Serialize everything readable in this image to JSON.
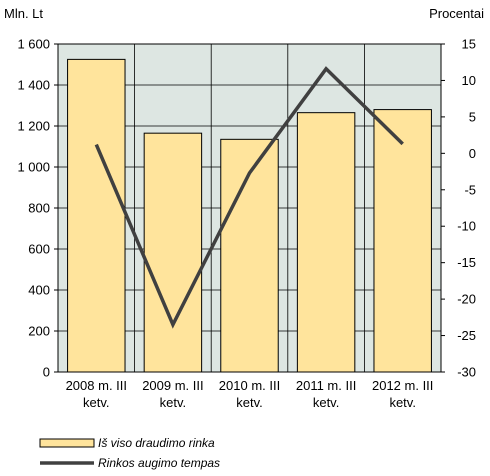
{
  "chart_data": {
    "type": "bar+line",
    "categories": [
      "2008 m. III ketv.",
      "2009 m. III ketv.",
      "2010 m. III ketv.",
      "2011 m. III ketv.",
      "2012 m. III ketv."
    ],
    "category_lines": [
      [
        "2008 m. III",
        "ketv."
      ],
      [
        "2009 m. III",
        "ketv."
      ],
      [
        "2010 m. III",
        "ketv."
      ],
      [
        "2011 m. III",
        "ketv."
      ],
      [
        "2012 m. III",
        "ketv."
      ]
    ],
    "ylabel_left": "Mln. Lt",
    "ylabel_right": "Procentai",
    "ylim_left": [
      0,
      1600
    ],
    "ylim_right": [
      -30,
      15
    ],
    "yticks_left": [
      {
        "value": 0,
        "label": "0"
      },
      {
        "value": 200,
        "label": "200"
      },
      {
        "value": 400,
        "label": "400"
      },
      {
        "value": 600,
        "label": "600"
      },
      {
        "value": 800,
        "label": "800"
      },
      {
        "value": 1000,
        "label": "1 000"
      },
      {
        "value": 1200,
        "label": "1 200"
      },
      {
        "value": 1400,
        "label": "1 400"
      },
      {
        "value": 1600,
        "label": "1 600"
      }
    ],
    "yticks_right": [
      {
        "value": -30,
        "label": "-30"
      },
      {
        "value": -25,
        "label": "-25"
      },
      {
        "value": -20,
        "label": "-20"
      },
      {
        "value": -15,
        "label": "-15"
      },
      {
        "value": -10,
        "label": "-10"
      },
      {
        "value": -5,
        "label": "-5"
      },
      {
        "value": 0,
        "label": "0"
      },
      {
        "value": 5,
        "label": "5"
      },
      {
        "value": 10,
        "label": "10"
      },
      {
        "value": 15,
        "label": "15"
      }
    ],
    "grid": true,
    "legend_position": "bottom-left",
    "series": [
      {
        "name": "Iš viso draudimo rinka",
        "type": "bar",
        "axis": "left",
        "values": [
          1525,
          1165,
          1135,
          1265,
          1280
        ],
        "color": "#ffe49c",
        "edge_color": "#000000"
      },
      {
        "name": "Rinkos augimo tempas",
        "type": "line",
        "axis": "right",
        "values": [
          1.2,
          -23.5,
          -2.7,
          11.6,
          1.3
        ],
        "color": "#404040"
      }
    ],
    "plot_background": "#dde6e2"
  }
}
